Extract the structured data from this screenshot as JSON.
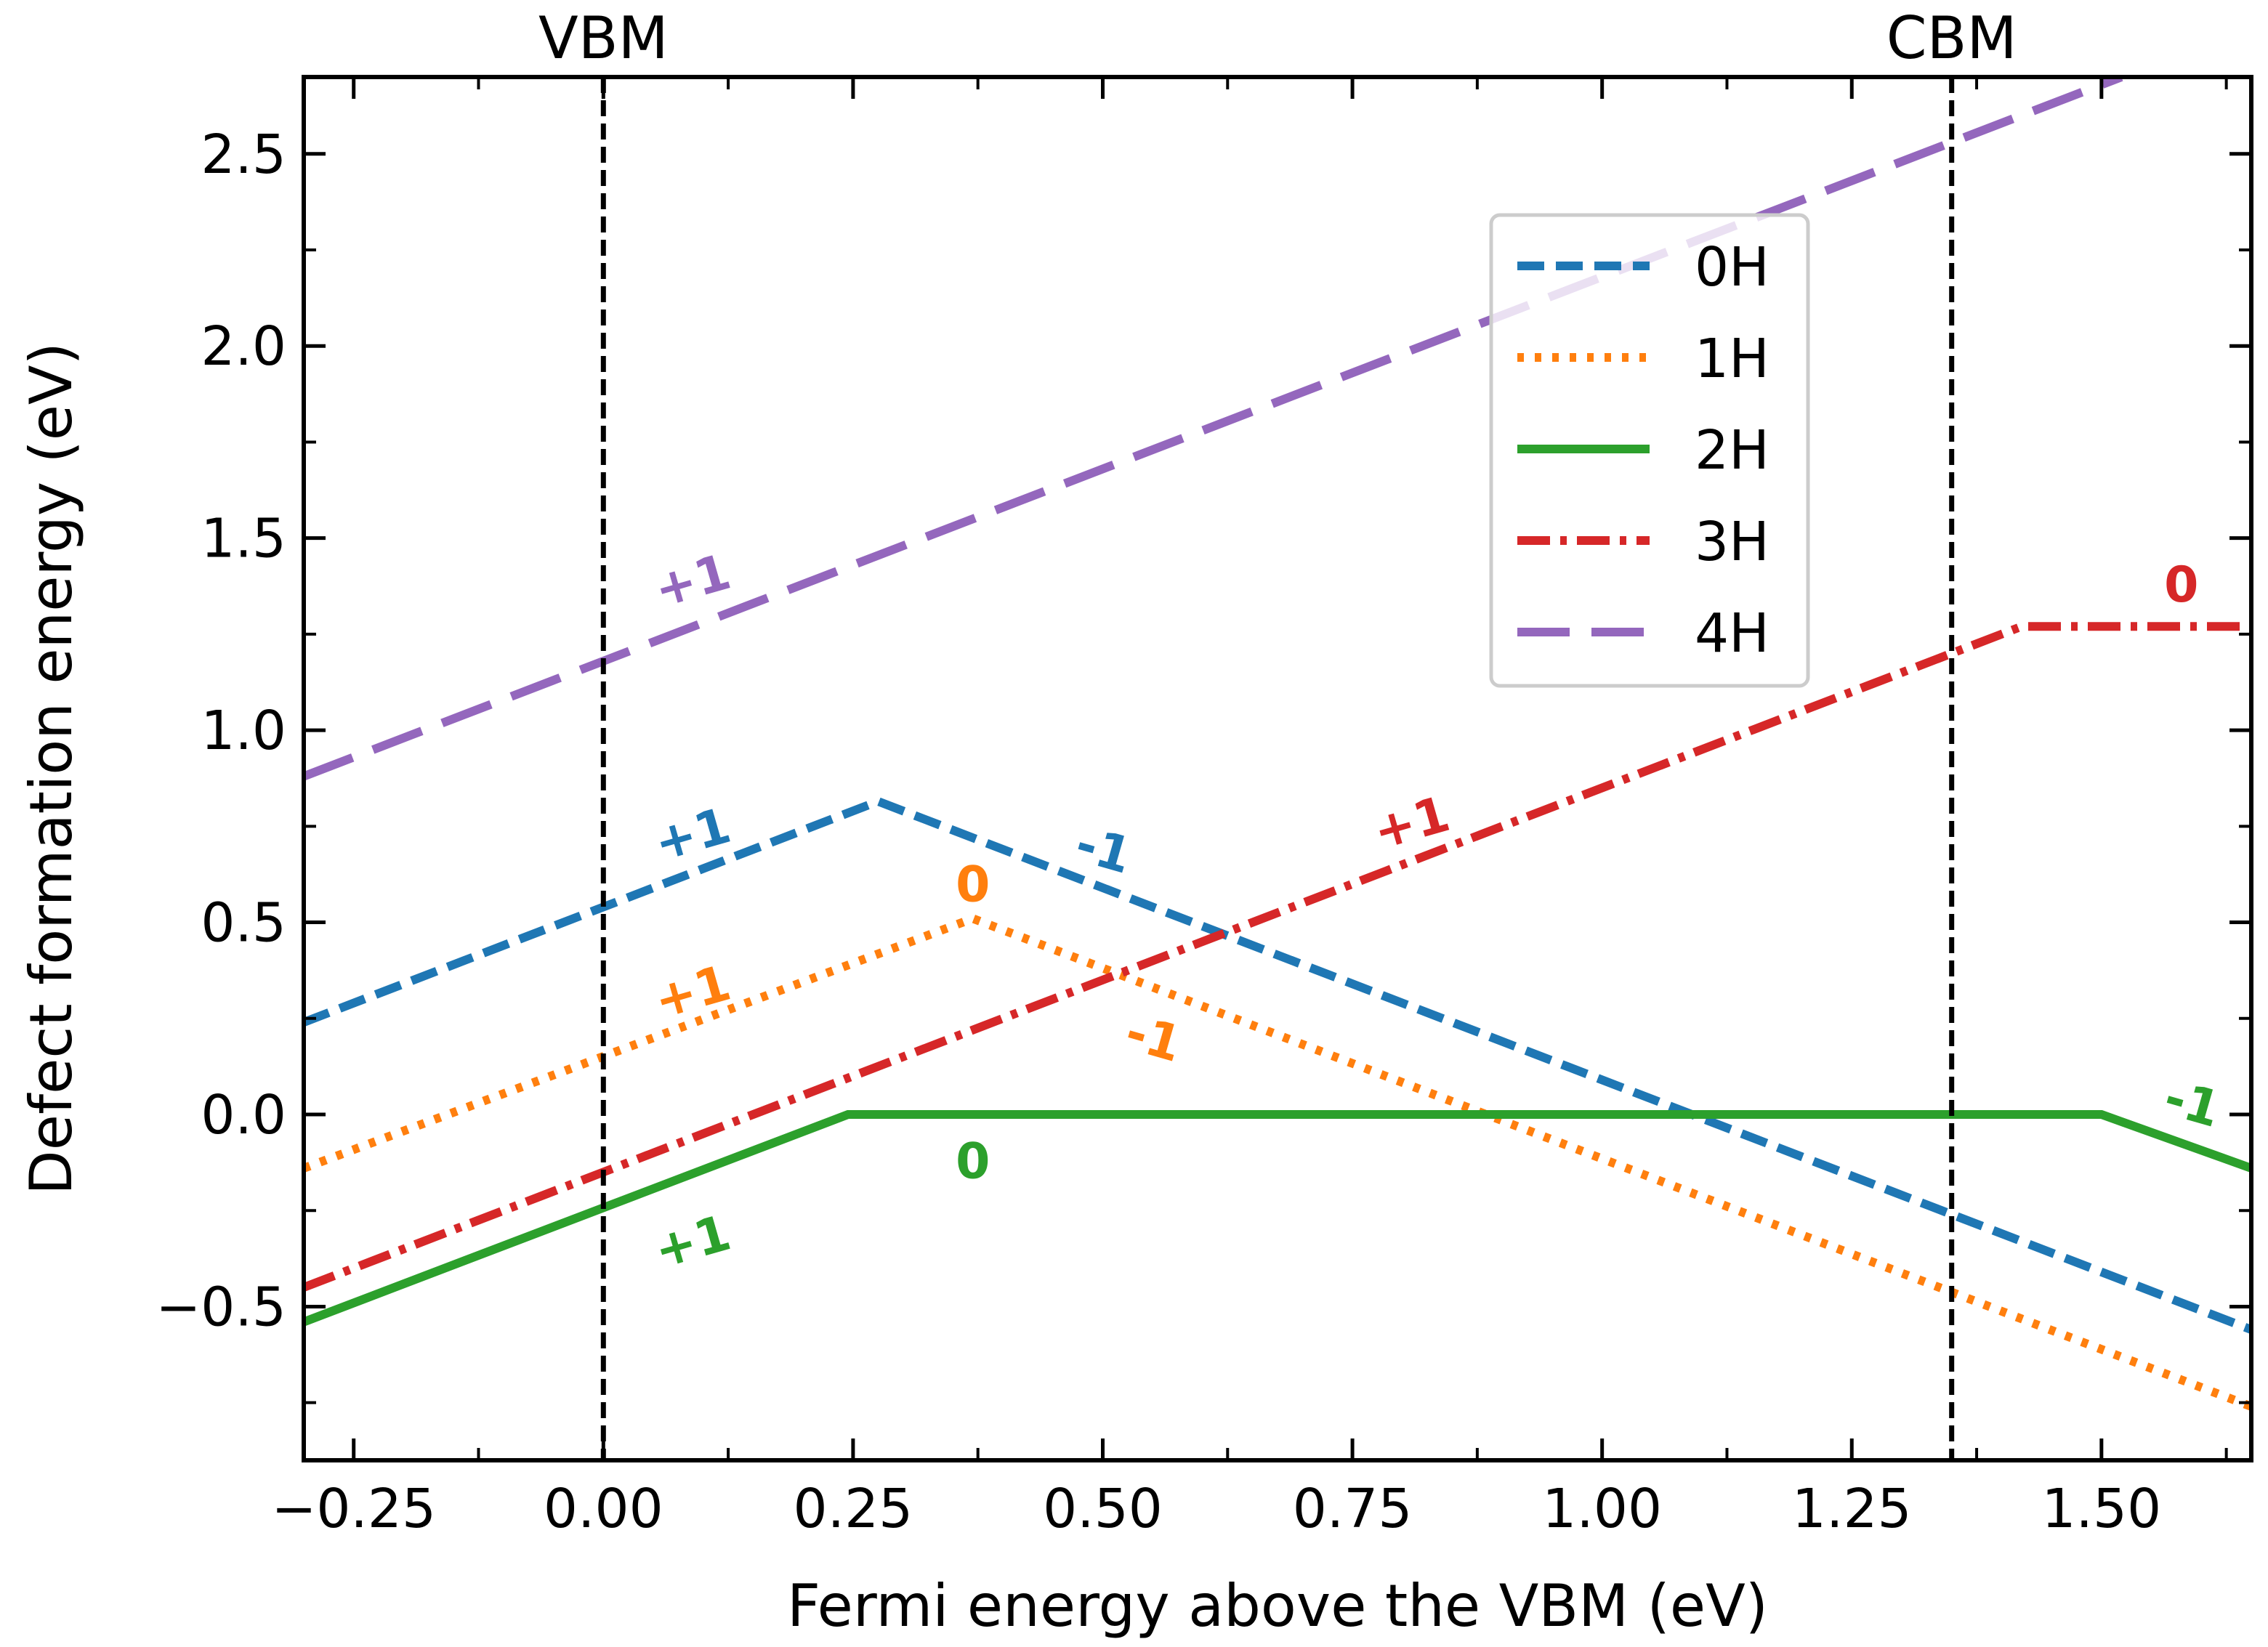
{
  "chart_data": {
    "type": "line",
    "title": "",
    "xlabel": "Fermi energy above the VBM (eV)",
    "ylabel": "Defect formation energy (eV)",
    "xlim": [
      -0.3,
      1.65
    ],
    "ylim": [
      -0.9,
      2.7
    ],
    "x_ticks": [
      -0.25,
      0.0,
      0.25,
      0.5,
      0.75,
      1.0,
      1.25,
      1.5
    ],
    "x_tick_labels": [
      "−0.25",
      "0.00",
      "0.25",
      "0.50",
      "0.75",
      "1.00",
      "1.25",
      "1.50"
    ],
    "y_ticks": [
      -0.5,
      0.0,
      0.5,
      1.0,
      1.5,
      2.0,
      2.5
    ],
    "y_tick_labels": [
      "−0.5",
      "0.0",
      "0.5",
      "1.0",
      "1.5",
      "2.0",
      "2.5"
    ],
    "vlines": [
      {
        "name": "VBM",
        "x": 0.0,
        "label": "VBM"
      },
      {
        "name": "CBM",
        "x": 1.35,
        "label": "CBM"
      }
    ],
    "legend_position": "upper-center-right",
    "series": [
      {
        "name": "0H",
        "color": "#1f77b4",
        "style": "dashed",
        "points": [
          [
            -0.3,
            0.24
          ],
          [
            0.275,
            0.815
          ],
          [
            1.65,
            -0.56
          ]
        ]
      },
      {
        "name": "1H",
        "color": "#ff7f0e",
        "style": "dotted",
        "points": [
          [
            -0.3,
            -0.14
          ],
          [
            0.37,
            0.51
          ],
          [
            1.65,
            -0.76
          ]
        ]
      },
      {
        "name": "2H",
        "color": "#2ca02c",
        "style": "solid",
        "points": [
          [
            -0.3,
            -0.54
          ],
          [
            0.245,
            0.0
          ],
          [
            1.5,
            0.0
          ],
          [
            1.65,
            -0.14
          ]
        ]
      },
      {
        "name": "3H",
        "color": "#d62728",
        "style": "dashdot",
        "points": [
          [
            -0.3,
            -0.45
          ],
          [
            1.42,
            1.27
          ],
          [
            1.65,
            1.27
          ]
        ]
      },
      {
        "name": "4H",
        "color": "#9467bd",
        "style": "longdash",
        "points": [
          [
            -0.3,
            0.88
          ],
          [
            1.52,
            2.7
          ]
        ]
      }
    ],
    "charge_labels": [
      {
        "series": "0H",
        "text": "+1",
        "x": 0.09,
        "y": 0.72,
        "rotate": -16
      },
      {
        "series": "0H",
        "text": "-1",
        "x": 0.5,
        "y": 0.68,
        "rotate": 16
      },
      {
        "series": "1H",
        "text": "+1",
        "x": 0.09,
        "y": 0.31,
        "rotate": -16
      },
      {
        "series": "1H",
        "text": "0",
        "x": 0.37,
        "y": 0.59,
        "rotate": 0
      },
      {
        "series": "1H",
        "text": "-1",
        "x": 0.55,
        "y": 0.19,
        "rotate": 16
      },
      {
        "series": "2H",
        "text": "+1",
        "x": 0.09,
        "y": -0.34,
        "rotate": -16
      },
      {
        "series": "2H",
        "text": "0",
        "x": 0.37,
        "y": -0.13,
        "rotate": 0
      },
      {
        "series": "2H",
        "text": "-1",
        "x": 1.59,
        "y": 0.02,
        "rotate": 16
      },
      {
        "series": "3H",
        "text": "+1",
        "x": 0.81,
        "y": 0.75,
        "rotate": -16
      },
      {
        "series": "3H",
        "text": "0",
        "x": 1.58,
        "y": 1.37,
        "rotate": 0
      },
      {
        "series": "4H",
        "text": "+1",
        "x": 0.09,
        "y": 1.38,
        "rotate": -16
      }
    ]
  }
}
